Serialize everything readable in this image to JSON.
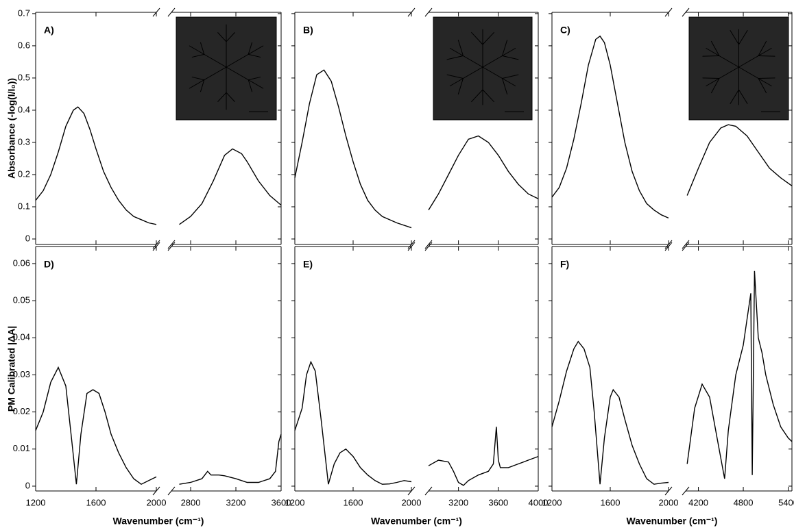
{
  "chart_data": [
    {
      "type": "line",
      "label": "A)",
      "ylabel": "Absorbance (-log(I/I₀))",
      "color": "#000000",
      "ylim": [
        -0.017,
        0.704
      ],
      "yticks": [
        0,
        0.1,
        0.2,
        0.3,
        0.4,
        0.5,
        0.6,
        0.7
      ],
      "segments": [
        {
          "xlim": [
            1200,
            2000
          ],
          "x": [
            1200,
            1250,
            1300,
            1350,
            1400,
            1450,
            1480,
            1520,
            1560,
            1600,
            1650,
            1700,
            1750,
            1800,
            1850,
            1900,
            1950,
            2000
          ],
          "values": [
            0.12,
            0.15,
            0.2,
            0.27,
            0.35,
            0.4,
            0.41,
            0.39,
            0.34,
            0.28,
            0.21,
            0.16,
            0.12,
            0.09,
            0.07,
            0.06,
            0.05,
            0.045
          ]
        },
        {
          "xlim": [
            2630,
            3600
          ],
          "x": [
            2700,
            2800,
            2900,
            3000,
            3100,
            3170,
            3250,
            3300,
            3400,
            3500,
            3600
          ],
          "values": [
            0.045,
            0.07,
            0.11,
            0.18,
            0.26,
            0.28,
            0.265,
            0.24,
            0.18,
            0.135,
            0.105
          ]
        }
      ]
    },
    {
      "type": "line",
      "label": "B)",
      "color": "#000000",
      "ylim": [
        -0.017,
        0.704
      ],
      "segments": [
        {
          "xlim": [
            1200,
            2000
          ],
          "x": [
            1200,
            1250,
            1300,
            1350,
            1400,
            1450,
            1500,
            1550,
            1600,
            1650,
            1700,
            1750,
            1800,
            1900,
            2000
          ],
          "values": [
            0.19,
            0.3,
            0.42,
            0.51,
            0.525,
            0.49,
            0.41,
            0.32,
            0.24,
            0.17,
            0.12,
            0.09,
            0.07,
            0.05,
            0.035
          ]
        },
        {
          "xlim": [
            2900,
            4000
          ],
          "x": [
            2900,
            3000,
            3100,
            3200,
            3300,
            3400,
            3500,
            3600,
            3700,
            3800,
            3900,
            4000
          ],
          "values": [
            0.09,
            0.14,
            0.2,
            0.26,
            0.31,
            0.32,
            0.3,
            0.26,
            0.21,
            0.17,
            0.14,
            0.125
          ]
        }
      ]
    },
    {
      "type": "line",
      "label": "C)",
      "color": "#000000",
      "ylim": [
        -0.017,
        0.704
      ],
      "segments": [
        {
          "xlim": [
            1200,
            2000
          ],
          "x": [
            1200,
            1250,
            1300,
            1350,
            1400,
            1450,
            1500,
            1530,
            1560,
            1600,
            1650,
            1700,
            1750,
            1800,
            1850,
            1900,
            1950,
            2000
          ],
          "values": [
            0.13,
            0.16,
            0.22,
            0.31,
            0.42,
            0.54,
            0.62,
            0.63,
            0.61,
            0.54,
            0.42,
            0.3,
            0.21,
            0.15,
            0.11,
            0.09,
            0.075,
            0.065
          ]
        },
        {
          "xlim": [
            4030,
            5450
          ],
          "x": [
            4050,
            4200,
            4350,
            4500,
            4600,
            4700,
            4850,
            5000,
            5150,
            5300,
            5450
          ],
          "values": [
            0.135,
            0.22,
            0.3,
            0.345,
            0.355,
            0.35,
            0.32,
            0.27,
            0.22,
            0.19,
            0.165
          ]
        }
      ]
    },
    {
      "type": "line",
      "label": "D)",
      "ylabel": "PM Calibrated |ΔA|",
      "xlabel": "Wavenumber (cm⁻¹)",
      "color": "#000000",
      "ylim": [
        -0.0013,
        0.0646
      ],
      "yticks": [
        0,
        0.01,
        0.02,
        0.03,
        0.04,
        0.05,
        0.06
      ],
      "segments": [
        {
          "xlim": [
            1200,
            2000
          ],
          "xticks": [
            1200,
            1600,
            2000
          ],
          "x": [
            1200,
            1250,
            1300,
            1350,
            1400,
            1440,
            1470,
            1500,
            1540,
            1580,
            1620,
            1660,
            1700,
            1750,
            1800,
            1850,
            1900,
            1950,
            2000
          ],
          "values": [
            0.015,
            0.02,
            0.028,
            0.032,
            0.027,
            0.012,
            0.0005,
            0.014,
            0.025,
            0.026,
            0.025,
            0.02,
            0.014,
            0.009,
            0.005,
            0.002,
            0.0005,
            0.0015,
            0.0025
          ]
        },
        {
          "xlim": [
            2630,
            3600
          ],
          "xticks": [
            2800,
            3200,
            3600
          ],
          "x": [
            2700,
            2800,
            2900,
            2950,
            2980,
            3050,
            3100,
            3200,
            3300,
            3400,
            3500,
            3550,
            3580,
            3600
          ],
          "values": [
            0.0005,
            0.001,
            0.002,
            0.004,
            0.003,
            0.003,
            0.0028,
            0.002,
            0.001,
            0.001,
            0.002,
            0.004,
            0.012,
            0.014
          ]
        }
      ]
    },
    {
      "type": "line",
      "label": "E)",
      "xlabel": "Wavenumber (cm⁻¹)",
      "color": "#000000",
      "ylim": [
        -0.0013,
        0.0646
      ],
      "segments": [
        {
          "xlim": [
            1200,
            2000
          ],
          "xticks": [
            1200,
            1600,
            2000
          ],
          "x": [
            1200,
            1250,
            1280,
            1310,
            1340,
            1380,
            1430,
            1470,
            1510,
            1550,
            1600,
            1650,
            1700,
            1750,
            1800,
            1850,
            1900,
            1950,
            2000
          ],
          "values": [
            0.015,
            0.021,
            0.03,
            0.0335,
            0.031,
            0.018,
            0.0005,
            0.006,
            0.009,
            0.01,
            0.008,
            0.005,
            0.003,
            0.0015,
            0.0005,
            0.0006,
            0.001,
            0.0015,
            0.0012
          ]
        },
        {
          "xlim": [
            2900,
            4000
          ],
          "xticks": [
            3200,
            3600,
            4000
          ],
          "x": [
            2900,
            3000,
            3100,
            3150,
            3200,
            3250,
            3300,
            3400,
            3500,
            3550,
            3580,
            3600,
            3620,
            3700,
            3800,
            3900,
            4000
          ],
          "values": [
            0.0055,
            0.007,
            0.0065,
            0.004,
            0.001,
            0.0002,
            0.0015,
            0.003,
            0.004,
            0.006,
            0.016,
            0.007,
            0.005,
            0.005,
            0.006,
            0.007,
            0.008
          ]
        }
      ]
    },
    {
      "type": "line",
      "label": "F)",
      "xlabel": "Wavenumber (cm⁻¹)",
      "color": "#000000",
      "ylim": [
        -0.0013,
        0.0646
      ],
      "segments": [
        {
          "xlim": [
            1200,
            2000
          ],
          "xticks": [
            1200,
            1600,
            2000
          ],
          "x": [
            1200,
            1250,
            1300,
            1350,
            1380,
            1420,
            1460,
            1490,
            1530,
            1560,
            1600,
            1620,
            1660,
            1700,
            1750,
            1800,
            1850,
            1900,
            1950,
            2000
          ],
          "values": [
            0.016,
            0.023,
            0.031,
            0.037,
            0.039,
            0.037,
            0.032,
            0.02,
            0.0005,
            0.013,
            0.024,
            0.026,
            0.024,
            0.018,
            0.011,
            0.006,
            0.002,
            0.0005,
            0.0008,
            0.001
          ]
        },
        {
          "xlim": [
            4030,
            5450
          ],
          "xticks": [
            4200,
            4800,
            5400
          ],
          "x": [
            4050,
            4150,
            4250,
            4350,
            4450,
            4550,
            4600,
            4700,
            4800,
            4850,
            4900,
            4920,
            4950,
            5000,
            5050,
            5100,
            5200,
            5300,
            5400,
            5450
          ],
          "values": [
            0.006,
            0.021,
            0.0275,
            0.024,
            0.013,
            0.002,
            0.015,
            0.03,
            0.038,
            0.045,
            0.052,
            0.003,
            0.058,
            0.04,
            0.036,
            0.03,
            0.022,
            0.016,
            0.013,
            0.012
          ]
        }
      ]
    }
  ]
}
